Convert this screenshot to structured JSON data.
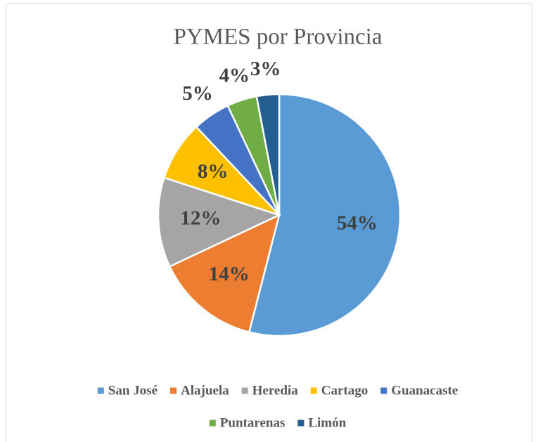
{
  "chart_data": {
    "type": "pie",
    "title": "PYMES por Provincia",
    "categories": [
      "San José",
      "Alajuela",
      "Heredia",
      "Cartago",
      "Guanacaste",
      "Puntarenas",
      "Limón"
    ],
    "values": [
      54,
      14,
      12,
      8,
      5,
      4,
      3
    ],
    "value_labels": [
      "54%",
      "14%",
      "12%",
      "8%",
      "5%",
      "4%",
      "3%"
    ],
    "colors": [
      "#5b9bd5",
      "#ed7d31",
      "#a5a5a5",
      "#ffc000",
      "#4472c4",
      "#70ad47",
      "#255e91"
    ],
    "legend": "bottom"
  }
}
